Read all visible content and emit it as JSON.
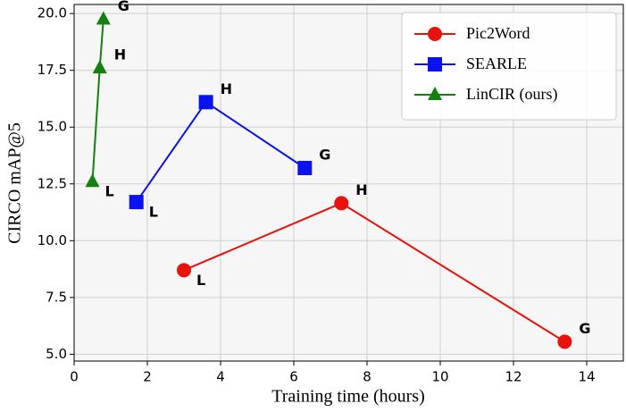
{
  "chart_data": {
    "type": "line",
    "xlabel": "Training time (hours)",
    "ylabel": "CIRCO mAP@5",
    "xlim": [
      0,
      15
    ],
    "ylim": [
      4.7,
      20.4
    ],
    "xticks": [
      0,
      2,
      4,
      6,
      8,
      10,
      12,
      14
    ],
    "yticks": [
      {
        "value": 5,
        "label": "5.0"
      },
      7.5,
      {
        "value": 10,
        "label": "10.0"
      },
      12.5,
      {
        "value": 15,
        "label": "15.0"
      },
      17.5,
      {
        "value": 20,
        "label": "20.0"
      }
    ],
    "grid": true,
    "legend": "upper right",
    "series": [
      {
        "name": "Pic2Word",
        "color": "#e8120c",
        "marker": "circle",
        "x": [
          3.0,
          7.3,
          13.4
        ],
        "values": [
          8.7,
          11.65,
          5.55
        ],
        "labels": [
          "L",
          "H",
          "G"
        ]
      },
      {
        "name": "SEARLE",
        "color": "#0a12f0",
        "marker": "square",
        "x": [
          1.7,
          3.6,
          6.3
        ],
        "values": [
          11.7,
          16.1,
          13.2
        ],
        "labels": [
          "L",
          "H",
          "G"
        ]
      },
      {
        "name": "LinCIR (ours)",
        "color": "#14800e",
        "marker": "triangle",
        "x": [
          0.5,
          0.7,
          0.8
        ],
        "values": [
          12.6,
          17.6,
          19.75
        ],
        "labels": [
          "L",
          "H",
          "G"
        ]
      }
    ]
  }
}
